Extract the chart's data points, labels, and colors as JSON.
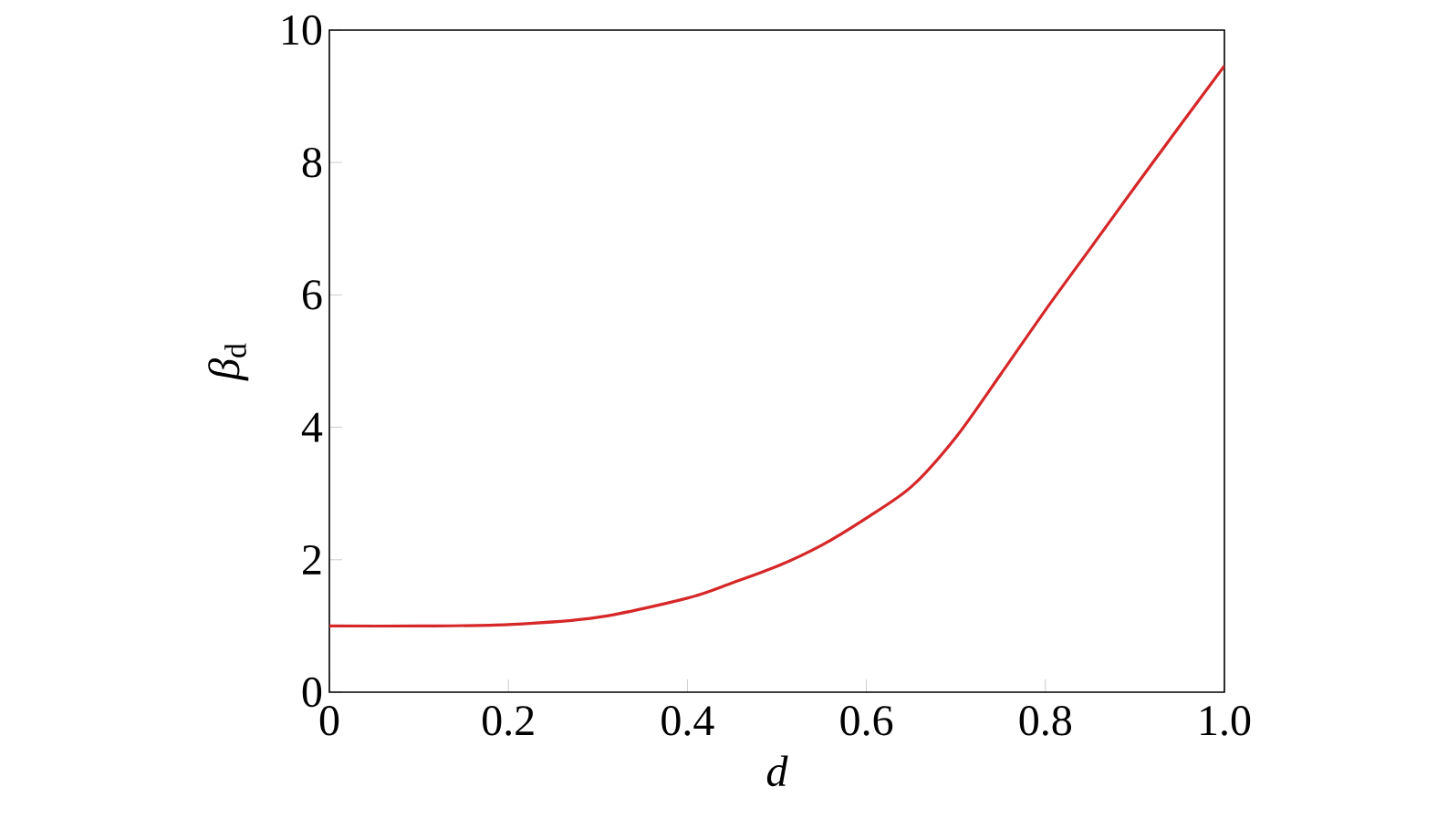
{
  "chart_data": {
    "type": "line",
    "xlabel": "*d*",
    "ylabel": "*β*$_{d}$",
    "x": [
      0,
      0.1,
      0.2,
      0.3,
      0.4,
      0.45,
      0.5,
      0.55,
      0.6,
      0.65,
      0.7,
      0.75,
      0.8,
      0.85,
      0.9,
      0.95,
      1.0
    ],
    "series": [
      {
        "color": "#d62728",
        "values": [
          1.0,
          1.0,
          1.02,
          1.13,
          1.42,
          1.65,
          1.9,
          2.22,
          2.63,
          3.1,
          3.85,
          4.8,
          5.77,
          6.7,
          7.63,
          8.55,
          9.46
        ]
      }
    ],
    "xlim": [
      0,
      1.0
    ],
    "ylim": [
      0,
      10
    ],
    "xticks": [
      0,
      0.2,
      0.4,
      0.6,
      0.8,
      {
        "value": 1.0,
        "label": "1.0"
      }
    ],
    "yticks": [
      0,
      2,
      4,
      6,
      8,
      10
    ],
    "grid": false,
    "marker": "none",
    "line_style": "solid"
  }
}
